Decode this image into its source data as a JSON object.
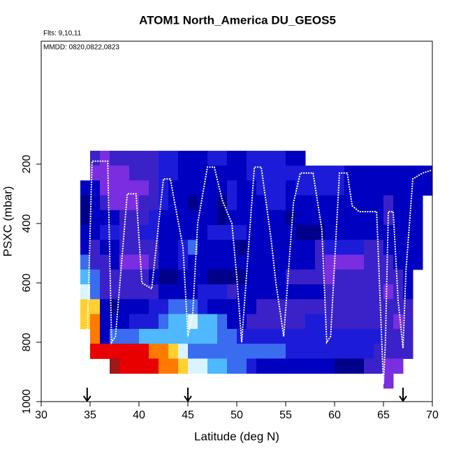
{
  "chart_data": {
    "type": "heatmap",
    "title": "ATOM1 North_America DU_GEOS5",
    "annotations": [
      "Flts: 9,10,11",
      "MMDD: 0820,0822,0823"
    ],
    "xlabel": "Latitude (deg N)",
    "ylabel": "PSXC (mbar)",
    "xlim": [
      30,
      70
    ],
    "ylim": [
      1000,
      -214
    ],
    "xticks": [
      30,
      35,
      40,
      45,
      50,
      55,
      60,
      65,
      70
    ],
    "yticks": [
      200,
      400,
      600,
      800,
      1000
    ],
    "xbins": [
      34,
      35,
      36,
      37,
      38,
      39,
      40,
      41,
      42,
      43,
      44,
      45,
      46,
      47,
      48,
      49,
      50,
      51,
      52,
      53,
      54,
      55,
      56,
      57,
      58,
      59,
      60,
      61,
      62,
      63,
      64,
      65,
      66,
      67,
      68,
      69,
      70
    ],
    "ybins": [
      155,
      205,
      255,
      305,
      355,
      405,
      455,
      505,
      555,
      605,
      655,
      705,
      755,
      805,
      855,
      905,
      955
    ],
    "colorscale": [
      "#00008b",
      "#0000c0",
      "#1c1cd8",
      "#3a22c8",
      "#7a2ee0",
      "#3a6cf0",
      "#4fb8ff",
      "#d8f4ff",
      "#ffd030",
      "#ff7a00",
      "#e80000",
      "#a01818"
    ],
    "z": [
      [
        null,
        3,
        4,
        3,
        3,
        3,
        3,
        3,
        2,
        2,
        1,
        1,
        1,
        2,
        2,
        1,
        1,
        2,
        2,
        2,
        2,
        1,
        1,
        null,
        null,
        null,
        null,
        null,
        null,
        null,
        null,
        null,
        null,
        null,
        null,
        null
      ],
      [
        null,
        4,
        4,
        4,
        4,
        3,
        3,
        3,
        2,
        2,
        1,
        1,
        1,
        1,
        1,
        1,
        1,
        2,
        2,
        2,
        2,
        2,
        2,
        2,
        2,
        2,
        2,
        1,
        1,
        1,
        1,
        1,
        1,
        1,
        1,
        1
      ],
      [
        1,
        1,
        4,
        4,
        4,
        4,
        4,
        3,
        2,
        1,
        1,
        1,
        1,
        1,
        1,
        2,
        1,
        1,
        2,
        2,
        2,
        1,
        2,
        2,
        2,
        2,
        2,
        1,
        1,
        1,
        1,
        1,
        1,
        1,
        1,
        1
      ],
      [
        0,
        1,
        3,
        4,
        4,
        4,
        3,
        3,
        2,
        1,
        1,
        0,
        1,
        1,
        0,
        2,
        1,
        1,
        1,
        2,
        2,
        1,
        1,
        1,
        1,
        1,
        1,
        1,
        1,
        1,
        1,
        3,
        1,
        1,
        1,
        null
      ],
      [
        0,
        1,
        1,
        1,
        3,
        3,
        3,
        2,
        1,
        1,
        1,
        1,
        1,
        1,
        0,
        1,
        1,
        1,
        1,
        1,
        1,
        0,
        1,
        1,
        1,
        1,
        1,
        1,
        1,
        1,
        1,
        3,
        1,
        1,
        1,
        null
      ],
      [
        1,
        1,
        2,
        2,
        3,
        3,
        2,
        2,
        1,
        1,
        1,
        1,
        1,
        2,
        2,
        2,
        2,
        1,
        1,
        1,
        1,
        1,
        0,
        0,
        0,
        1,
        1,
        1,
        1,
        1,
        1,
        1,
        1,
        1,
        1,
        null
      ],
      [
        1,
        3,
        1,
        1,
        3,
        3,
        3,
        3,
        1,
        1,
        2,
        5,
        1,
        1,
        1,
        1,
        0,
        1,
        1,
        1,
        1,
        1,
        1,
        1,
        3,
        2,
        2,
        2,
        2,
        3,
        3,
        1,
        1,
        1,
        1,
        null
      ],
      [
        5,
        3,
        3,
        1,
        4,
        4,
        4,
        3,
        1,
        1,
        2,
        1,
        1,
        1,
        1,
        1,
        1,
        1,
        1,
        1,
        1,
        1,
        1,
        1,
        3,
        4,
        4,
        4,
        4,
        3,
        3,
        3,
        1,
        1,
        1,
        null
      ],
      [
        6,
        5,
        3,
        3,
        3,
        3,
        3,
        1,
        0,
        0,
        1,
        1,
        1,
        0,
        0,
        0,
        0,
        1,
        1,
        1,
        1,
        3,
        3,
        3,
        3,
        4,
        3,
        3,
        3,
        3,
        3,
        3,
        3,
        1,
        null,
        null
      ],
      [
        7,
        5,
        3,
        3,
        3,
        3,
        3,
        3,
        1,
        1,
        1,
        1,
        2,
        2,
        2,
        3,
        1,
        1,
        1,
        1,
        1,
        1,
        1,
        1,
        1,
        3,
        3,
        3,
        3,
        3,
        3,
        4,
        3,
        1,
        null,
        null
      ],
      [
        8,
        8,
        1,
        0,
        1,
        1,
        1,
        2,
        2,
        5,
        5,
        5,
        2,
        1,
        1,
        1,
        1,
        1,
        3,
        3,
        3,
        3,
        3,
        3,
        3,
        3,
        3,
        3,
        3,
        3,
        3,
        3,
        3,
        3,
        null,
        null
      ],
      [
        8,
        9,
        1,
        1,
        1,
        2,
        2,
        2,
        5,
        6,
        6,
        7,
        6,
        6,
        5,
        1,
        1,
        3,
        3,
        3,
        3,
        3,
        3,
        2,
        2,
        3,
        3,
        3,
        3,
        3,
        3,
        3,
        4,
        3,
        null,
        null
      ],
      [
        null,
        9,
        1,
        5,
        5,
        5,
        6,
        6,
        6,
        6,
        6,
        6,
        6,
        6,
        5,
        5,
        2,
        2,
        2,
        2,
        2,
        2,
        2,
        2,
        2,
        2,
        2,
        2,
        2,
        2,
        2,
        3,
        3,
        3,
        null,
        null
      ],
      [
        null,
        10,
        10,
        10,
        10,
        10,
        10,
        9,
        9,
        8,
        7,
        5,
        5,
        5,
        5,
        5,
        5,
        5,
        5,
        5,
        5,
        2,
        2,
        2,
        2,
        2,
        2,
        2,
        2,
        2,
        3,
        3,
        3,
        3,
        null,
        null
      ],
      [
        null,
        null,
        null,
        11,
        10,
        10,
        10,
        10,
        9,
        9,
        8,
        7,
        7,
        6,
        6,
        5,
        5,
        2,
        1,
        1,
        1,
        1,
        1,
        1,
        1,
        1,
        0,
        0,
        0,
        3,
        3,
        4,
        4,
        null,
        null,
        null
      ],
      [
        null,
        null,
        null,
        null,
        null,
        null,
        null,
        null,
        null,
        null,
        null,
        null,
        null,
        null,
        null,
        null,
        null,
        null,
        null,
        null,
        null,
        null,
        null,
        null,
        null,
        null,
        null,
        null,
        null,
        null,
        null,
        4,
        null,
        null,
        null,
        null
      ]
    ],
    "track": {
      "color": "#ffffff",
      "x": [
        34.7,
        35.2,
        36.8,
        37.2,
        37.6,
        38.8,
        39.7,
        40.3,
        41.3,
        42.5,
        43.2,
        44.5,
        45,
        45.5,
        46,
        47,
        47.7,
        48.5,
        49.5,
        50,
        50.5,
        51.8,
        52.5,
        53.5,
        54,
        54.8,
        55.8,
        56.5,
        57.8,
        58.7,
        59.2,
        59.6,
        60.5,
        61.3,
        61.8,
        62.5,
        64.3,
        65,
        65.2,
        65.5,
        66,
        66.5,
        67,
        67.3,
        68,
        69,
        70
      ],
      "y": [
        790,
        190,
        190,
        800,
        780,
        300,
        300,
        600,
        620,
        250,
        250,
        480,
        780,
        700,
        400,
        210,
        210,
        320,
        400,
        580,
        800,
        210,
        210,
        450,
        600,
        780,
        330,
        230,
        230,
        420,
        800,
        780,
        230,
        230,
        340,
        360,
        360,
        940,
        800,
        360,
        360,
        660,
        820,
        560,
        250,
        230,
        220
      ]
    },
    "arrows": [
      34.7,
      45,
      67
    ]
  }
}
